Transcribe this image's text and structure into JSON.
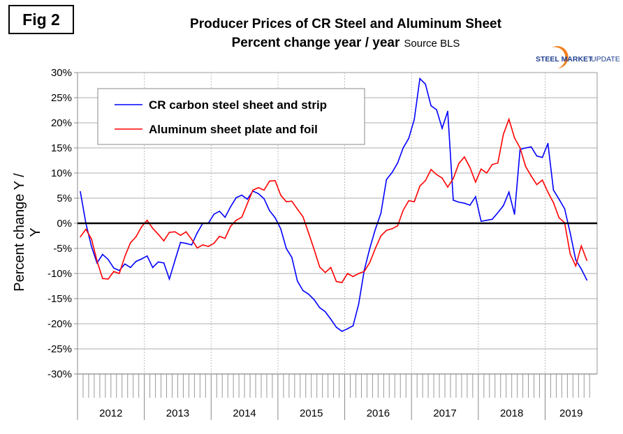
{
  "fig_label": "Fig 2",
  "title_line1": "Producer Prices of CR Steel and Aluminum Sheet",
  "title_line2": "Percent change year / year",
  "source": "Source BLS",
  "logo": {
    "text_bold": "STEEL MARKET",
    "text_light": "UPDATE",
    "colors": {
      "text": "#1f3f8f",
      "arc": "#f08020"
    }
  },
  "chart_data": {
    "type": "line",
    "title": "Producer Prices of CR Steel and Aluminum Sheet — Percent change year / year",
    "xlabel": "",
    "ylabel": "Percent change Y / Y",
    "ylim": [
      -30,
      30
    ],
    "y_ticks": [
      "30%",
      "25%",
      "20%",
      "15%",
      "10%",
      "5%",
      "0%",
      "-5%",
      "-10%",
      "-15%",
      "-20%",
      "-25%",
      "-30%"
    ],
    "x_start": "2012-01",
    "x_frequency": "monthly",
    "x_tick_labels": [
      "2012",
      "2013",
      "2014",
      "2015",
      "2016",
      "2017",
      "2018",
      "2019"
    ],
    "grid": true,
    "legend_position": "top-left",
    "series": [
      {
        "name": "CR carbon steel sheet and strip",
        "color": "#0000ff",
        "values": [
          6.3,
          0,
          -4.6,
          -7.9,
          -6.2,
          -7.2,
          -8.9,
          -9.4,
          -8.1,
          -8.8,
          -7.6,
          -7.1,
          -6.5,
          -8.8,
          -7.7,
          -7.9,
          -11.1,
          -7.4,
          -3.8,
          -4.0,
          -4.3,
          -1.9,
          0,
          0,
          1.8,
          2.4,
          1.2,
          3.3,
          5.1,
          5.6,
          4.8,
          6.4,
          5.9,
          4.9,
          2.5,
          1.1,
          -1.1,
          -5.0,
          -6.8,
          -11.5,
          -13.4,
          -14.1,
          -15.2,
          -16.8,
          -17.6,
          -19.1,
          -20.7,
          -21.5,
          -21.0,
          -20.4,
          -16.1,
          -9.4,
          -5.0,
          -1.2,
          2.0,
          8.7,
          10.1,
          12.0,
          15.0,
          16.9,
          20.7,
          28.8,
          27.7,
          23.4,
          22.6,
          18.9,
          22.3,
          4.6,
          4.2,
          4.0,
          3.6,
          5.3,
          0.4,
          0.6,
          0.8,
          2.1,
          3.5,
          6.2,
          1.8,
          14.7,
          15.0,
          15.2,
          13.4,
          13.1,
          15.9,
          6.6,
          4.8,
          2.9,
          -1.9,
          -7.3,
          -9.1,
          -11.3
        ]
      },
      {
        "name": "Aluminum sheet plate and foil",
        "color": "#ff0000",
        "values": [
          -2.7,
          -1.2,
          -3.1,
          -7.5,
          -11.0,
          -11.1,
          -9.6,
          -10.0,
          -6.6,
          -3.9,
          -2.7,
          -0.7,
          0.6,
          -1.0,
          -2.2,
          -3.5,
          -1.8,
          -1.7,
          -2.4,
          -1.7,
          -3.2,
          -4.9,
          -4.3,
          -4.6,
          -4.0,
          -2.6,
          -3.0,
          -0.6,
          0.6,
          1.2,
          3.9,
          6.6,
          7.1,
          6.6,
          8.4,
          8.5,
          5.6,
          4.3,
          4.4,
          2.8,
          1.3,
          -1.9,
          -5.2,
          -8.7,
          -9.8,
          -8.8,
          -11.6,
          -11.8,
          -10.0,
          -10.6,
          -10.0,
          -9.6,
          -7.8,
          -5.0,
          -2.5,
          -1.4,
          -1.1,
          -0.5,
          2.6,
          4.5,
          4.3,
          7.4,
          8.5,
          10.7,
          9.7,
          9.0,
          7.2,
          8.9,
          11.9,
          13.2,
          11.1,
          8.2,
          10.8,
          10.0,
          11.7,
          12.0,
          17.7,
          20.7,
          17.0,
          15.0,
          11.3,
          9.4,
          7.7,
          8.6,
          6.2,
          4.1,
          1.1,
          0.1,
          -6.1,
          -8.5,
          -4.5,
          -7.4
        ]
      }
    ]
  }
}
